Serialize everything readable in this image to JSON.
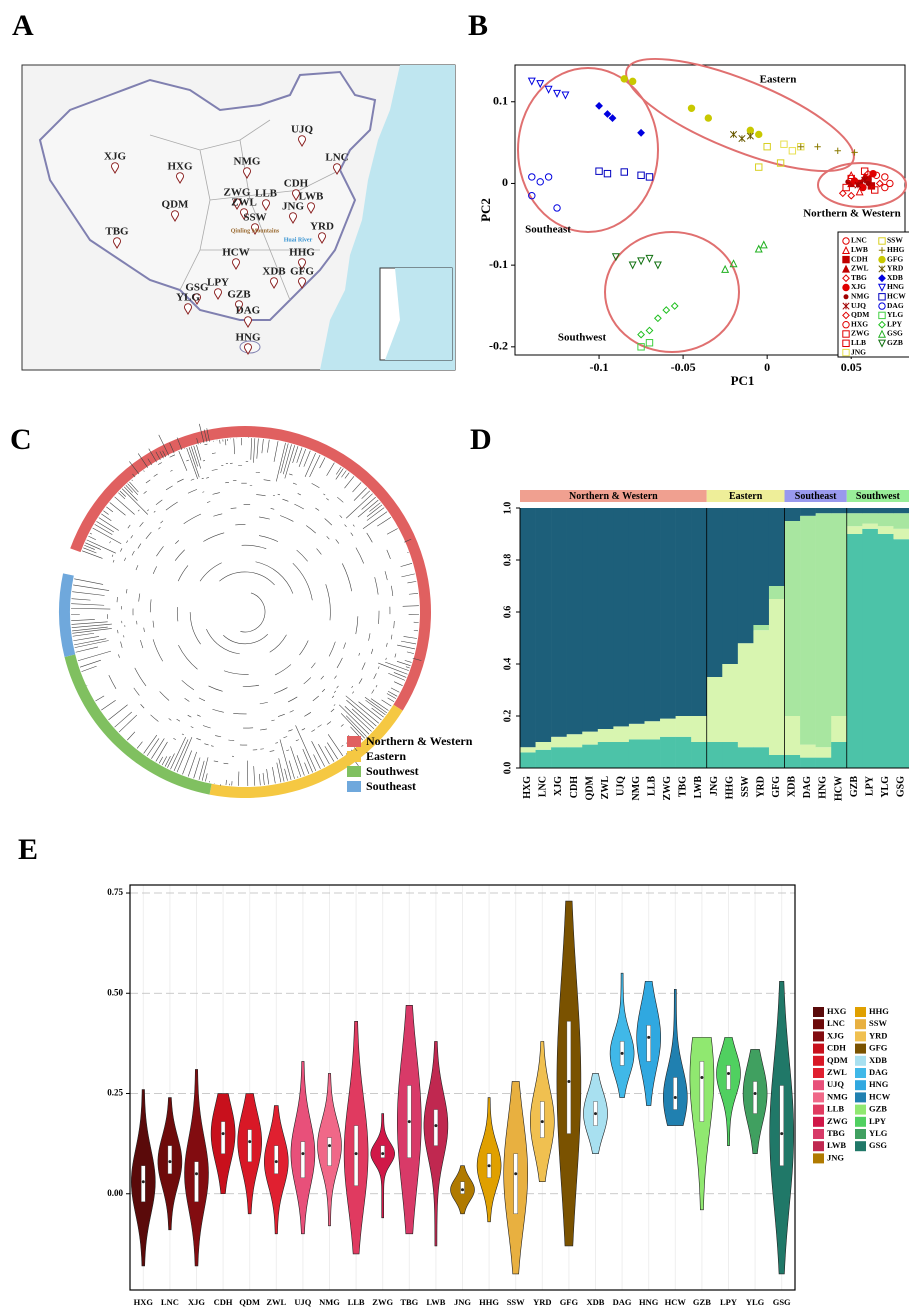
{
  "chart_data": [
    {
      "type": "map",
      "label": "A",
      "locations": [
        "XJG",
        "HXG",
        "NMG",
        "UJQ",
        "LNC",
        "CDH",
        "LLB",
        "ZWG",
        "ZWL",
        "LWB",
        "JNG",
        "QDM",
        "SSW",
        "TBG",
        "YRD",
        "HCW",
        "HHG",
        "XDB",
        "GFG",
        "GSG",
        "LPY",
        "YLG",
        "GZB",
        "DAG",
        "HNG"
      ],
      "annotations": [
        "Qinling Mountains",
        "Huai River"
      ]
    },
    {
      "type": "scatter",
      "label": "B",
      "xlabel": "PC1",
      "ylabel": "PC2",
      "xlim": [
        -0.15,
        0.082
      ],
      "ylim": [
        -0.21,
        0.145
      ],
      "xticks": [
        -0.1,
        -0.05,
        0,
        0.05
      ],
      "yticks": [
        -0.2,
        -0.1,
        0,
        0.1
      ],
      "annotations": [
        "Eastern",
        "Southeast",
        "Southwest",
        "Northern & Western"
      ],
      "series": [
        {
          "name": "LNC",
          "color": "#e00000",
          "marker": "o",
          "x": [
            0.06,
            0.065,
            0.07
          ],
          "y": [
            0.005,
            0.01,
            -0.005
          ]
        },
        {
          "name": "LWB",
          "color": "#e00000",
          "marker": "^",
          "x": [
            0.05,
            0.055
          ],
          "y": [
            0.01,
            -0.01
          ]
        },
        {
          "name": "CDH",
          "color": "#c00000",
          "marker": "s",
          "x": [
            0.055,
            0.06,
            0.062
          ],
          "y": [
            0.0,
            0.005,
            -0.003
          ]
        },
        {
          "name": "ZWL",
          "color": "#c00000",
          "marker": "tri",
          "x": [
            0.05,
            0.058
          ],
          "y": [
            0.0,
            0.008
          ]
        },
        {
          "name": "TBG",
          "color": "#e00000",
          "marker": "d",
          "x": [
            0.045,
            0.05
          ],
          "y": [
            -0.012,
            -0.015
          ]
        },
        {
          "name": "XJG",
          "color": "#e00000",
          "marker": "c",
          "x": [
            0.052,
            0.057,
            0.063
          ],
          "y": [
            0.003,
            -0.005,
            0.012
          ]
        },
        {
          "name": "NMG",
          "color": "#a00000",
          "marker": "dot",
          "x": [
            0.048,
            0.06
          ],
          "y": [
            0.002,
            0.0
          ]
        },
        {
          "name": "UJQ",
          "color": "#a00000",
          "marker": "x",
          "x": [
            0.054,
            0.058
          ],
          "y": [
            -0.002,
            0.004
          ]
        },
        {
          "name": "QDM",
          "color": "#e00000",
          "marker": "d",
          "x": [
            0.06,
            0.067
          ],
          "y": [
            0.012,
            0.0
          ]
        },
        {
          "name": "HXG",
          "color": "#e00000",
          "marker": "o",
          "x": [
            0.07,
            0.073
          ],
          "y": [
            0.008,
            0.0
          ]
        },
        {
          "name": "ZWG",
          "color": "#e00000",
          "marker": "sq",
          "x": [
            0.064,
            0.05
          ],
          "y": [
            -0.008,
            0.006
          ]
        },
        {
          "name": "LLB",
          "color": "#e00000",
          "marker": "sq",
          "x": [
            0.058,
            0.047
          ],
          "y": [
            0.015,
            -0.005
          ]
        },
        {
          "name": "JNG",
          "color": "#e8e050",
          "marker": "sq",
          "x": [
            0.01,
            0.015,
            0.02
          ],
          "y": [
            0.048,
            0.04,
            0.045
          ]
        },
        {
          "name": "SSW",
          "color": "#d8d020",
          "marker": "sq",
          "x": [
            0.0,
            0.008,
            -0.005
          ],
          "y": [
            0.045,
            0.025,
            0.02
          ]
        },
        {
          "name": "HHG",
          "color": "#8a7a00",
          "marker": "+",
          "x": [
            0.02,
            0.03,
            0.042,
            0.052
          ],
          "y": [
            0.045,
            0.045,
            0.04,
            0.038
          ]
        },
        {
          "name": "GFG",
          "color": "#c8c800",
          "marker": "c",
          "x": [
            -0.085,
            -0.08,
            -0.045,
            -0.035,
            -0.01,
            -0.005
          ],
          "y": [
            0.128,
            0.125,
            0.092,
            0.08,
            0.065,
            0.06
          ]
        },
        {
          "name": "YRD",
          "color": "#6a5a00",
          "marker": "x",
          "x": [
            -0.02,
            -0.015,
            -0.01
          ],
          "y": [
            0.06,
            0.055,
            0.058
          ]
        },
        {
          "name": "XDB",
          "color": "#0000e0",
          "marker": "D",
          "x": [
            -0.1,
            -0.095,
            -0.092,
            -0.075
          ],
          "y": [
            0.095,
            0.085,
            0.08,
            0.062
          ]
        },
        {
          "name": "HNG",
          "color": "#0000e0",
          "marker": "v",
          "x": [
            -0.14,
            -0.135,
            -0.13,
            -0.125,
            -0.12
          ],
          "y": [
            0.125,
            0.122,
            0.115,
            0.11,
            0.108
          ]
        },
        {
          "name": "HCW",
          "color": "#0000c0",
          "marker": "sq",
          "x": [
            -0.1,
            -0.095,
            -0.085,
            -0.075,
            -0.07
          ],
          "y": [
            0.015,
            0.012,
            0.014,
            0.01,
            0.008
          ]
        },
        {
          "name": "DAG",
          "color": "#0000e0",
          "marker": "o",
          "x": [
            -0.14,
            -0.14,
            -0.135,
            -0.13,
            -0.125
          ],
          "y": [
            0.008,
            -0.015,
            0.002,
            0.008,
            -0.03
          ]
        },
        {
          "name": "YLG",
          "color": "#40d040",
          "marker": "sq",
          "x": [
            -0.075,
            -0.07
          ],
          "y": [
            -0.2,
            -0.195
          ]
        },
        {
          "name": "LPY",
          "color": "#20c020",
          "marker": "d",
          "x": [
            -0.075,
            -0.07,
            -0.065,
            -0.06,
            -0.055
          ],
          "y": [
            -0.185,
            -0.18,
            -0.165,
            -0.155,
            -0.15
          ]
        },
        {
          "name": "GSG",
          "color": "#20b020",
          "marker": "^",
          "x": [
            -0.025,
            -0.02,
            -0.005,
            -0.002
          ],
          "y": [
            -0.105,
            -0.098,
            -0.08,
            -0.075
          ]
        },
        {
          "name": "GZB",
          "color": "#107010",
          "marker": "v",
          "x": [
            -0.09,
            -0.08,
            -0.075,
            -0.07,
            -0.065
          ],
          "y": [
            -0.09,
            -0.1,
            -0.095,
            -0.092,
            -0.1
          ]
        }
      ]
    },
    {
      "type": "tree",
      "label": "C",
      "legend": [
        {
          "name": "Northern & Western",
          "color": "#e06060"
        },
        {
          "name": "Eastern",
          "color": "#f5c842"
        },
        {
          "name": "Southwest",
          "color": "#80c060"
        },
        {
          "name": "Southeast",
          "color": "#6fa8dc"
        }
      ]
    },
    {
      "type": "structure",
      "label": "D",
      "ylim": [
        0,
        1
      ],
      "yticks": [
        {
          "value": 0,
          "label": "0.0"
        },
        0.2,
        0.4,
        0.6,
        0.8,
        {
          "value": 1,
          "label": "1.0"
        }
      ],
      "groups": [
        {
          "name": "Northern & Western",
          "color": "#f0a090",
          "categories": [
            "HXG",
            "LNC",
            "XJG",
            "CDH",
            "QDM",
            "ZWL",
            "UJQ",
            "NMG",
            "LLB",
            "ZWG",
            "TBG",
            "LWB"
          ]
        },
        {
          "name": "Eastern",
          "color": "#eeee99",
          "categories": [
            "JNG",
            "HHG",
            "SSW",
            "YRD",
            "GFG"
          ]
        },
        {
          "name": "Southeast",
          "color": "#9999ee",
          "categories": [
            "XDB",
            "DAG",
            "HNG",
            "HCW"
          ]
        },
        {
          "name": "Southwest",
          "color": "#99ee99",
          "categories": [
            "GZB",
            "LPY",
            "YLG",
            "GSG"
          ]
        }
      ],
      "series": [
        {
          "color": "#4cc3a8",
          "values": [
            0.06,
            0.07,
            0.08,
            0.08,
            0.09,
            0.1,
            0.1,
            0.11,
            0.11,
            0.12,
            0.12,
            0.1,
            0.1,
            0.1,
            0.08,
            0.08,
            0.05,
            0.05,
            0.04,
            0.04,
            0.1,
            0.9,
            0.92,
            0.9,
            0.88
          ]
        },
        {
          "color": "#d8f5b0",
          "values": [
            0.02,
            0.03,
            0.04,
            0.05,
            0.05,
            0.05,
            0.06,
            0.06,
            0.07,
            0.07,
            0.08,
            0.1,
            0.25,
            0.3,
            0.4,
            0.45,
            0.6,
            0.15,
            0.05,
            0.04,
            0.1,
            0.03,
            0.02,
            0.03,
            0.04
          ]
        },
        {
          "color": "#a8e6a0",
          "values": [
            0,
            0,
            0,
            0,
            0,
            0,
            0,
            0,
            0,
            0,
            0,
            0,
            0,
            0,
            0,
            0.02,
            0.05,
            0.75,
            0.88,
            0.9,
            0.78,
            0.05,
            0.04,
            0.05,
            0.06
          ]
        },
        {
          "color": "#1d5f7a",
          "values": [
            0.92,
            0.9,
            0.88,
            0.87,
            0.86,
            0.85,
            0.84,
            0.83,
            0.82,
            0.81,
            0.8,
            0.8,
            0.65,
            0.6,
            0.52,
            0.45,
            0.3,
            0.05,
            0.03,
            0.02,
            0.02,
            0.02,
            0.02,
            0.02,
            0.02
          ]
        }
      ]
    },
    {
      "type": "violin",
      "label": "E",
      "ylim": [
        -0.24,
        0.77
      ],
      "yticks": [
        {
          "value": 0,
          "label": "0.00"
        },
        0.25,
        {
          "value": 0.5,
          "label": "0.50"
        },
        0.75
      ],
      "grid": true,
      "categories": [
        "HXG",
        "LNC",
        "XJG",
        "CDH",
        "QDM",
        "ZWL",
        "UJQ",
        "NMG",
        "LLB",
        "ZWG",
        "TBG",
        "LWB",
        "JNG",
        "HHG",
        "SSW",
        "YRD",
        "GFG",
        "XDB",
        "DAG",
        "HNG",
        "HCW",
        "GZB",
        "LPY",
        "YLG",
        "GSG"
      ],
      "colors": [
        "#5a0a0a",
        "#6e0b0b",
        "#820c10",
        "#c8101c",
        "#d81826",
        "#e02030",
        "#e8507a",
        "#f06888",
        "#e03a60",
        "#d01848",
        "#d83a68",
        "#c02850",
        "#b07a00",
        "#e0a000",
        "#e8b040",
        "#f0c050",
        "#7a5200",
        "#a8e0f0",
        "#40b8e8",
        "#30a8e0",
        "#2080b0",
        "#90e870",
        "#50d060",
        "#40a060",
        "#207868"
      ],
      "min": [
        -0.18,
        -0.09,
        -0.18,
        0,
        -0.05,
        -0.1,
        -0.1,
        -0.08,
        -0.15,
        -0.06,
        -0.1,
        -0.13,
        -0.05,
        -0.07,
        -0.2,
        0.03,
        -0.13,
        0.1,
        0.24,
        0.22,
        0.17,
        -0.04,
        0.12,
        0.1,
        -0.2
      ],
      "q1": [
        -0.02,
        0.05,
        -0.02,
        0.1,
        0.08,
        0.05,
        0.04,
        0.07,
        0.02,
        0.09,
        0.09,
        0.12,
        0,
        0.04,
        -0.05,
        0.14,
        0.15,
        0.17,
        0.32,
        0.33,
        0.21,
        0.18,
        0.26,
        0.2,
        0.07
      ],
      "median": [
        0.03,
        0.08,
        0.05,
        0.15,
        0.13,
        0.08,
        0.1,
        0.12,
        0.1,
        0.1,
        0.18,
        0.17,
        0.01,
        0.07,
        0.05,
        0.18,
        0.28,
        0.2,
        0.35,
        0.39,
        0.24,
        0.29,
        0.3,
        0.25,
        0.15
      ],
      "q3": [
        0.07,
        0.12,
        0.08,
        0.18,
        0.16,
        0.12,
        0.13,
        0.14,
        0.17,
        0.12,
        0.27,
        0.21,
        0.03,
        0.1,
        0.1,
        0.23,
        0.43,
        0.23,
        0.38,
        0.42,
        0.29,
        0.33,
        0.32,
        0.28,
        0.27
      ],
      "max": [
        0.26,
        0.24,
        0.31,
        0.25,
        0.25,
        0.22,
        0.33,
        0.3,
        0.43,
        0.2,
        0.47,
        0.38,
        0.07,
        0.24,
        0.28,
        0.38,
        0.73,
        0.3,
        0.55,
        0.53,
        0.51,
        0.39,
        0.39,
        0.36,
        0.53
      ]
    }
  ]
}
